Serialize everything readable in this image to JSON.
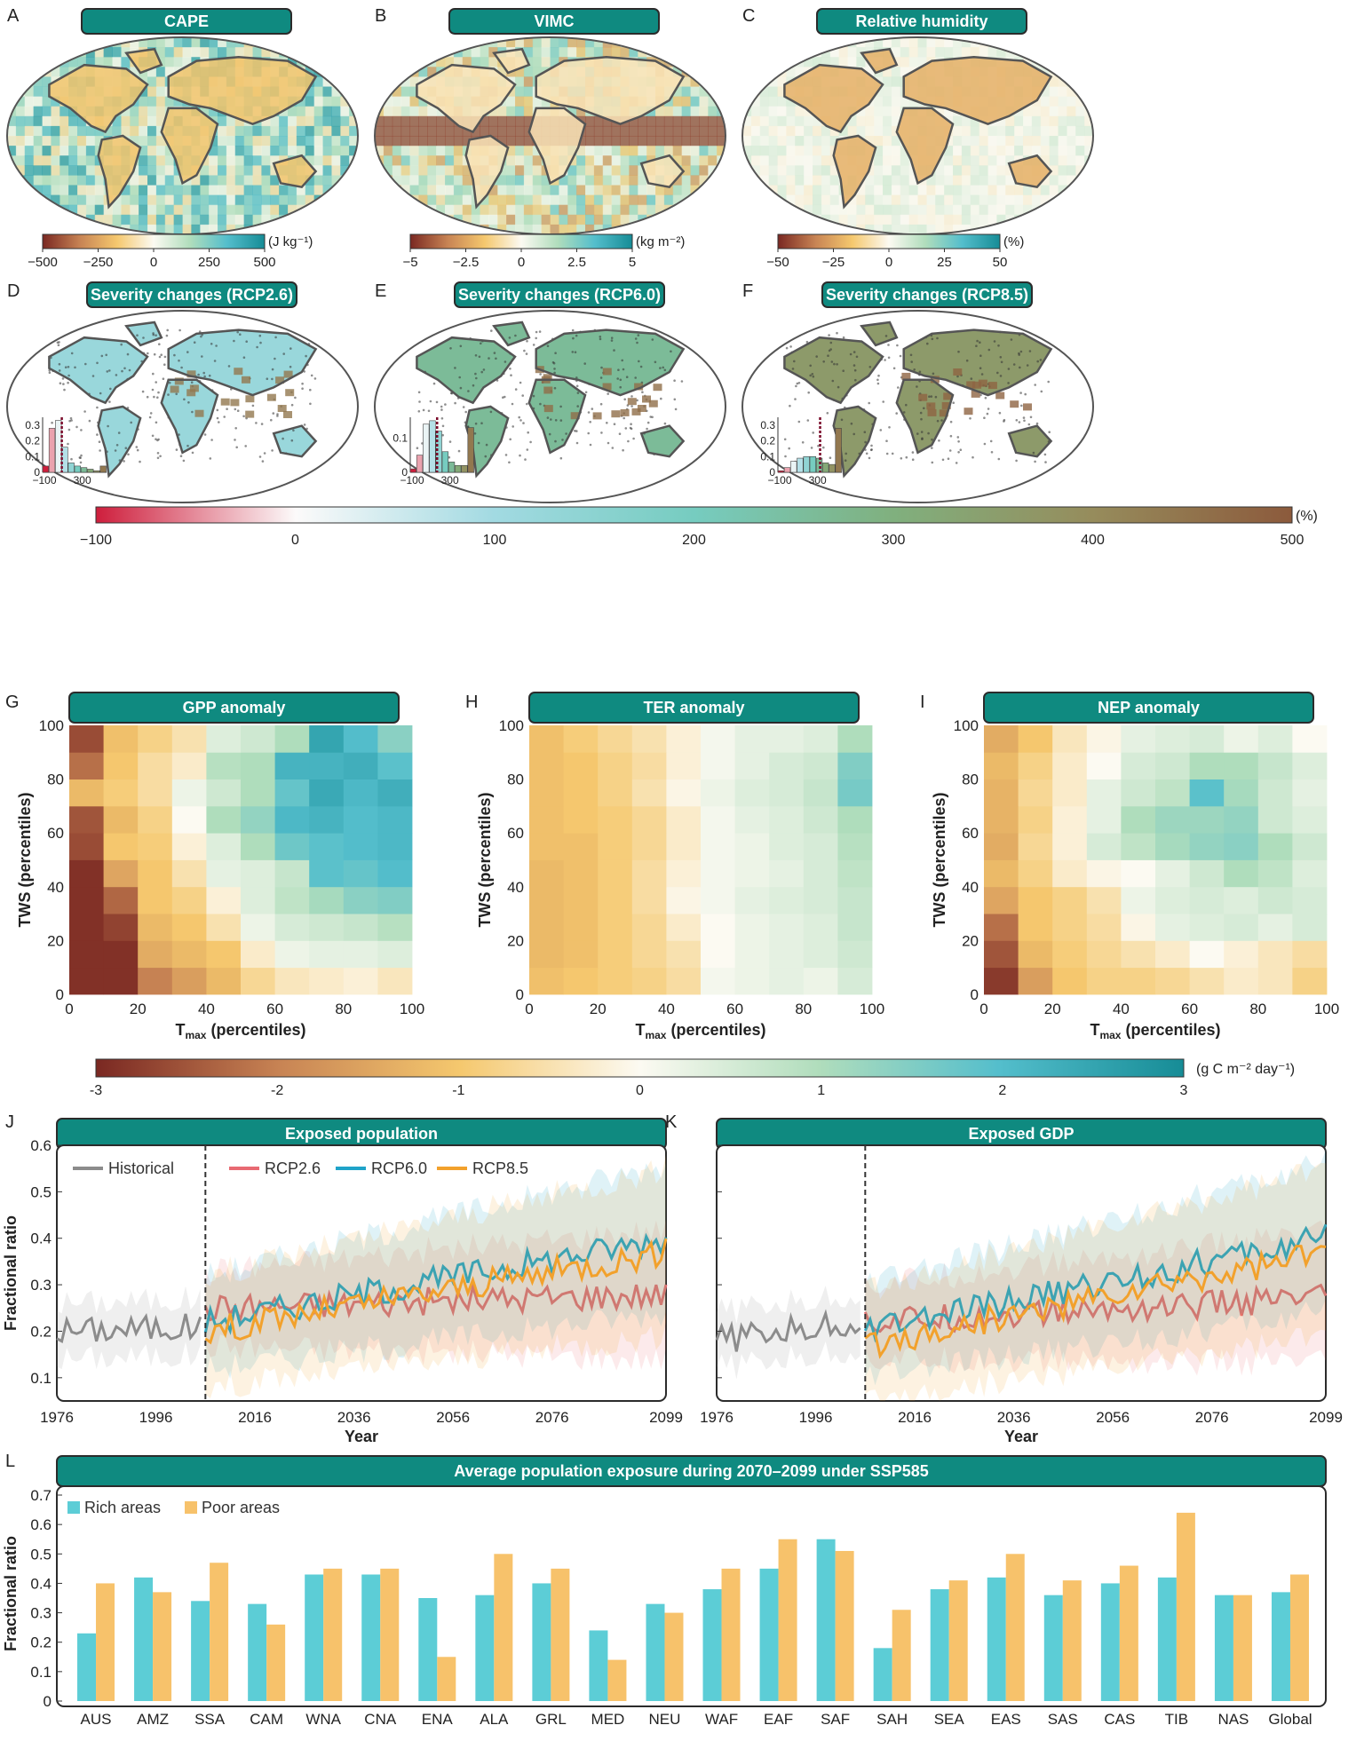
{
  "panel_letters": [
    "A",
    "B",
    "C",
    "D",
    "E",
    "F",
    "G",
    "H",
    "I",
    "J",
    "K",
    "L"
  ],
  "maps_top": [
    {
      "letter": "A",
      "title": "CAPE",
      "unit": "(J kg⁻¹)",
      "ticks": [
        "−500",
        "−250",
        "0",
        "250",
        "500"
      ],
      "palette": "brown-teal"
    },
    {
      "letter": "B",
      "title": "VIMC",
      "unit": "(kg m⁻²)",
      "ticks": [
        "−5",
        "−2.5",
        "0",
        "2.5",
        "5"
      ],
      "palette": "brown-teal"
    },
    {
      "letter": "C",
      "title": "Relative humidity",
      "unit": "(%)",
      "ticks": [
        "−50",
        "−25",
        "0",
        "25",
        "50"
      ],
      "palette": "brown-teal"
    }
  ],
  "maps_severity": [
    {
      "letter": "D",
      "title": "Severity changes (RCP2.6)",
      "hist_yticks": [
        "0.3",
        "0.2",
        "0.1",
        "0"
      ],
      "hist_xticks": [
        "−100",
        "300"
      ],
      "hist_values": [
        0.04,
        0.28,
        0.33,
        0.16,
        0.06,
        0.04,
        0.03,
        0.02,
        0.01,
        0.04
      ],
      "hist_ymax": 0.35
    },
    {
      "letter": "E",
      "title": "Severity changes (RCP6.0)",
      "hist_yticks": [
        "0.1",
        "0"
      ],
      "hist_xticks": [
        "−100",
        "300"
      ],
      "hist_values": [
        0.01,
        0.05,
        0.14,
        0.15,
        0.12,
        0.06,
        0.03,
        0.02,
        0.02,
        0.13
      ],
      "hist_ymax": 0.16
    },
    {
      "letter": "F",
      "title": "Severity changes (RCP8.5)",
      "hist_yticks": [
        "0.3",
        "0.2",
        "0.1",
        "0"
      ],
      "hist_xticks": [
        "−100",
        "300"
      ],
      "hist_values": [
        0.01,
        0.03,
        0.07,
        0.09,
        0.1,
        0.1,
        0.09,
        0.06,
        0.05,
        0.28
      ],
      "hist_ymax": 0.35
    }
  ],
  "severity_colorbar": {
    "ticks": [
      "−100",
      "0",
      "100",
      "200",
      "300",
      "400",
      "500"
    ],
    "unit": "(%)"
  },
  "heatmaps": [
    {
      "letter": "G",
      "title": "GPP anomaly",
      "ylabel": "TWS (percentiles)",
      "xlabel_main": "T",
      "xlabel_sub": "max",
      "xlabel_rest": " (percentiles)",
      "xticks": [
        "0",
        "20",
        "40",
        "60",
        "80",
        "100"
      ],
      "yticks": [
        "0",
        "20",
        "40",
        "60",
        "80",
        "100"
      ]
    },
    {
      "letter": "H",
      "title": "TER anomaly",
      "ylabel": "TWS (percentiles)",
      "xlabel_main": "T",
      "xlabel_sub": "max",
      "xlabel_rest": " (percentiles)",
      "xticks": [
        "0",
        "20",
        "40",
        "60",
        "80",
        "100"
      ],
      "yticks": [
        "0",
        "20",
        "40",
        "60",
        "80",
        "100"
      ]
    },
    {
      "letter": "I",
      "title": "NEP anomaly",
      "ylabel": "TWS (percentiles)",
      "xlabel_main": "T",
      "xlabel_sub": "max",
      "xlabel_rest": " (percentiles)",
      "xticks": [
        "0",
        "20",
        "40",
        "60",
        "80",
        "100"
      ],
      "yticks": [
        "0",
        "20",
        "40",
        "60",
        "80",
        "100"
      ]
    }
  ],
  "flux_colorbar": {
    "ticks": [
      "-3",
      "-2",
      "-1",
      "0",
      "1",
      "2",
      "3"
    ],
    "unit": "(g C m⁻² day⁻¹)"
  },
  "timeseries": [
    {
      "letter": "J",
      "title": "Exposed population",
      "ylabel": "Fractional ratio",
      "xlabel": "Year",
      "xticks": [
        "1976",
        "1996",
        "2016",
        "2036",
        "2056",
        "2076",
        "2099"
      ],
      "yticks": [
        "0.1",
        "0.2",
        "0.3",
        "0.4",
        "0.5",
        "0.6"
      ]
    },
    {
      "letter": "K",
      "title": "Exposed GDP",
      "ylabel": "",
      "xlabel": "Year",
      "xticks": [
        "1976",
        "1996",
        "2016",
        "2036",
        "2056",
        "2076",
        "2099"
      ],
      "yticks": []
    }
  ],
  "ts_legend": [
    {
      "name": "Historical",
      "color": "#8c8c8c"
    },
    {
      "name": "RCP2.6",
      "color": "#e86a72"
    },
    {
      "name": "RCP6.0",
      "color": "#1fa3c9"
    },
    {
      "name": "RCP8.5",
      "color": "#f2a12c"
    }
  ],
  "bar_panel": {
    "letter": "L",
    "title": "Average population exposure during 2070–2099 under SSP585",
    "ylabel": "Fractional ratio",
    "yticks": [
      "0",
      "0.1",
      "0.2",
      "0.3",
      "0.4",
      "0.5",
      "0.6",
      "0.7"
    ],
    "legend": [
      {
        "name": "Rich areas",
        "color": "#5ccdd6"
      },
      {
        "name": "Poor areas",
        "color": "#f7c26b"
      }
    ]
  },
  "colors": {
    "header": "#0f8a80",
    "header_border": "#2b2b2b",
    "rich": "#5ccdd6",
    "poor": "#f7c26b"
  },
  "chart_data": [
    {
      "type": "bar",
      "title": "Average population exposure during 2070–2099 under SSP585",
      "ylabel": "Fractional ratio",
      "ylim": [
        0,
        0.7
      ],
      "categories": [
        "AUS",
        "AMZ",
        "SSA",
        "CAM",
        "WNA",
        "CNA",
        "ENA",
        "ALA",
        "GRL",
        "MED",
        "NEU",
        "WAF",
        "EAF",
        "SAF",
        "SAH",
        "SEA",
        "EAS",
        "SAS",
        "CAS",
        "TIB",
        "NAS",
        "Global"
      ],
      "series": [
        {
          "name": "Rich areas",
          "values": [
            0.23,
            0.42,
            0.34,
            0.33,
            0.43,
            0.43,
            0.35,
            0.36,
            0.4,
            0.24,
            0.33,
            0.38,
            0.45,
            0.55,
            0.18,
            0.38,
            0.42,
            0.36,
            0.4,
            0.42,
            0.36,
            0.37
          ]
        },
        {
          "name": "Poor areas",
          "values": [
            0.4,
            0.37,
            0.47,
            0.26,
            0.45,
            0.45,
            0.15,
            0.5,
            0.45,
            0.14,
            0.3,
            0.45,
            0.55,
            0.51,
            0.31,
            0.41,
            0.5,
            0.41,
            0.46,
            0.64,
            0.36,
            0.43
          ]
        }
      ],
      "legend": "top-left"
    },
    {
      "type": "line",
      "title": "Exposed population",
      "xlabel": "Year",
      "ylabel": "Fractional ratio",
      "xlim": [
        1976,
        2099
      ],
      "ylim": [
        0.05,
        0.6
      ],
      "series": [
        {
          "name": "Historical",
          "x": [
            1976,
            2005
          ],
          "y_start": 0.2,
          "y_end": 0.21
        },
        {
          "name": "RCP2.6",
          "x": [
            2006,
            2099
          ],
          "y_start": 0.25,
          "y_end": 0.28
        },
        {
          "name": "RCP6.0",
          "x": [
            2006,
            2099
          ],
          "y_start": 0.22,
          "y_end": 0.4
        },
        {
          "name": "RCP8.5",
          "x": [
            2006,
            2099
          ],
          "y_start": 0.2,
          "y_end": 0.37
        }
      ]
    },
    {
      "type": "line",
      "title": "Exposed GDP",
      "xlabel": "Year",
      "xlim": [
        1976,
        2099
      ],
      "ylim": [
        0.05,
        0.6
      ],
      "series": [
        {
          "name": "Historical",
          "x": [
            1976,
            2005
          ],
          "y_start": 0.18,
          "y_end": 0.22
        },
        {
          "name": "RCP2.6",
          "x": [
            2006,
            2099
          ],
          "y_start": 0.22,
          "y_end": 0.27
        },
        {
          "name": "RCP6.0",
          "x": [
            2006,
            2099
          ],
          "y_start": 0.2,
          "y_end": 0.4
        },
        {
          "name": "RCP8.5",
          "x": [
            2006,
            2099
          ],
          "y_start": 0.17,
          "y_end": 0.37
        }
      ]
    },
    {
      "type": "heatmap",
      "title": "GPP anomaly",
      "range": [
        -3,
        3
      ],
      "grid": [
        [
          -2.9,
          -2.9,
          -2.0,
          -1.6,
          -1.2,
          -0.7,
          -0.4,
          -0.3,
          -0.2,
          -0.4
        ],
        [
          -2.9,
          -2.9,
          -1.4,
          -1.2,
          -1.0,
          -0.3,
          0.2,
          0.3,
          0.3,
          0.4
        ],
        [
          -2.9,
          -2.7,
          -1.2,
          -1.0,
          -0.5,
          0.2,
          0.5,
          0.6,
          0.7,
          0.9
        ],
        [
          -2.9,
          -2.3,
          -1.0,
          -0.8,
          -0.2,
          0.4,
          0.8,
          1.1,
          1.4,
          1.5
        ],
        [
          -2.9,
          -1.5,
          -1.0,
          -0.5,
          0.3,
          0.4,
          0.7,
          1.9,
          1.8,
          2.0
        ],
        [
          -2.6,
          -1.0,
          -0.9,
          -0.2,
          0.4,
          1.0,
          1.7,
          1.9,
          2.0,
          2.1
        ],
        [
          -2.5,
          -1.2,
          -0.8,
          0.0,
          1.0,
          1.3,
          2.1,
          2.2,
          2.0,
          2.1
        ],
        [
          -1.2,
          -0.9,
          -0.6,
          0.2,
          0.6,
          1.0,
          1.8,
          2.4,
          2.1,
          2.3
        ],
        [
          -2.2,
          -1.0,
          -0.6,
          -0.3,
          0.9,
          1.0,
          2.2,
          2.2,
          2.3,
          1.9
        ],
        [
          -2.6,
          -1.1,
          -0.8,
          -0.5,
          0.4,
          0.6,
          1.0,
          2.5,
          2.0,
          1.4
        ]
      ]
    },
    {
      "type": "heatmap",
      "title": "TER anomaly",
      "range": [
        -3,
        3
      ],
      "grid": [
        [
          -1.1,
          -1.0,
          -0.9,
          -0.8,
          -0.6,
          0.1,
          0.2,
          0.3,
          0.2,
          0.5
        ],
        [
          -1.2,
          -1.1,
          -0.9,
          -0.7,
          -0.5,
          0.0,
          0.2,
          0.3,
          0.4,
          0.6
        ],
        [
          -1.2,
          -1.1,
          -0.9,
          -0.7,
          -0.3,
          0.0,
          0.2,
          0.3,
          0.4,
          0.7
        ],
        [
          -1.2,
          -1.1,
          -0.9,
          -0.6,
          -0.1,
          0.1,
          0.3,
          0.4,
          0.5,
          0.7
        ],
        [
          -1.2,
          -1.1,
          -0.9,
          -0.6,
          -0.2,
          0.1,
          0.2,
          0.3,
          0.5,
          0.8
        ],
        [
          -1.1,
          -1.1,
          -0.9,
          -0.7,
          -0.3,
          0.1,
          0.2,
          0.4,
          0.5,
          0.9
        ],
        [
          -1.1,
          -1.0,
          -0.9,
          -0.7,
          -0.3,
          0.1,
          0.3,
          0.4,
          0.6,
          1.0
        ],
        [
          -1.1,
          -1.0,
          -0.8,
          -0.5,
          -0.1,
          0.2,
          0.4,
          0.5,
          0.7,
          1.6
        ],
        [
          -1.1,
          -1.0,
          -0.8,
          -0.6,
          -0.2,
          0.1,
          0.3,
          0.5,
          0.6,
          1.5
        ],
        [
          -1.1,
          -0.9,
          -0.7,
          -0.5,
          -0.2,
          0.1,
          0.3,
          0.3,
          0.4,
          1.0
        ]
      ]
    },
    {
      "type": "heatmap",
      "title": "NEP anomaly",
      "range": [
        -3,
        3
      ],
      "grid": [
        [
          -2.8,
          -1.6,
          -1.0,
          -0.8,
          -0.8,
          -0.7,
          -0.5,
          -0.3,
          -0.4,
          -0.8
        ],
        [
          -2.5,
          -1.2,
          -0.9,
          -0.7,
          -0.5,
          -0.3,
          0.0,
          -0.2,
          -0.4,
          -0.6
        ],
        [
          -2.2,
          -1.0,
          -0.8,
          -0.6,
          -0.1,
          0.3,
          0.4,
          0.5,
          0.3,
          0.5
        ],
        [
          -1.5,
          -1.0,
          -0.8,
          -0.5,
          0.2,
          0.4,
          0.5,
          0.4,
          0.6,
          0.5
        ],
        [
          -1.2,
          -0.8,
          -0.3,
          -0.1,
          0.0,
          0.3,
          0.6,
          1.0,
          0.8,
          0.4
        ],
        [
          -1.4,
          -0.7,
          -0.2,
          0.5,
          0.8,
          1.1,
          1.3,
          1.4,
          1.0,
          0.6
        ],
        [
          -1.3,
          -0.8,
          -0.2,
          0.3,
          1.0,
          1.2,
          1.2,
          1.3,
          0.6,
          0.4
        ],
        [
          -1.3,
          -0.7,
          -0.3,
          0.3,
          0.6,
          0.8,
          1.9,
          1.1,
          0.6,
          0.3
        ],
        [
          -1.2,
          -0.8,
          -0.3,
          0.0,
          0.5,
          0.6,
          1.0,
          1.0,
          0.7,
          0.4
        ],
        [
          -1.4,
          -1.0,
          -0.4,
          -0.1,
          0.3,
          0.4,
          0.5,
          0.2,
          0.4,
          0.0
        ]
      ]
    }
  ]
}
